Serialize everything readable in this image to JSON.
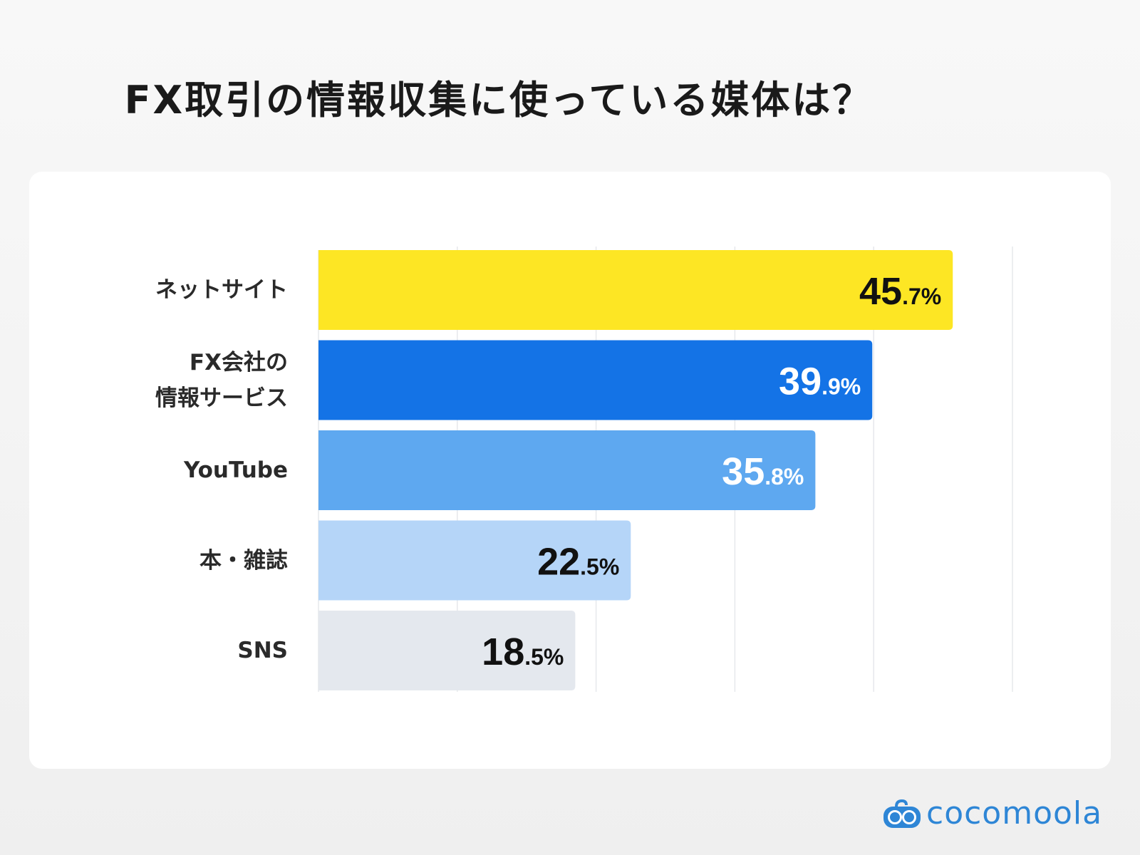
{
  "title": "FX取引の情報収集に使っている媒体は？",
  "brand": "cocomoola",
  "chart_data": {
    "type": "bar",
    "orientation": "horizontal",
    "title": "FX取引の情報収集に使っている媒体は？",
    "categories": [
      "ネットサイト",
      "FX会社の\n情報サービス",
      "YouTube",
      "本・雑誌",
      "SNS"
    ],
    "values": [
      45.7,
      39.9,
      35.8,
      22.5,
      18.5
    ],
    "unit": "%",
    "xlim": [
      0,
      50
    ],
    "grid": true,
    "gridlines": [
      10,
      20,
      30,
      40,
      50
    ],
    "colors": [
      "#fde624",
      "#1473e6",
      "#5ea8f0",
      "#b5d5f8",
      "#e4e8ee"
    ],
    "label_colors": [
      "#111111",
      "#ffffff",
      "#ffffff",
      "#111111",
      "#111111"
    ]
  }
}
